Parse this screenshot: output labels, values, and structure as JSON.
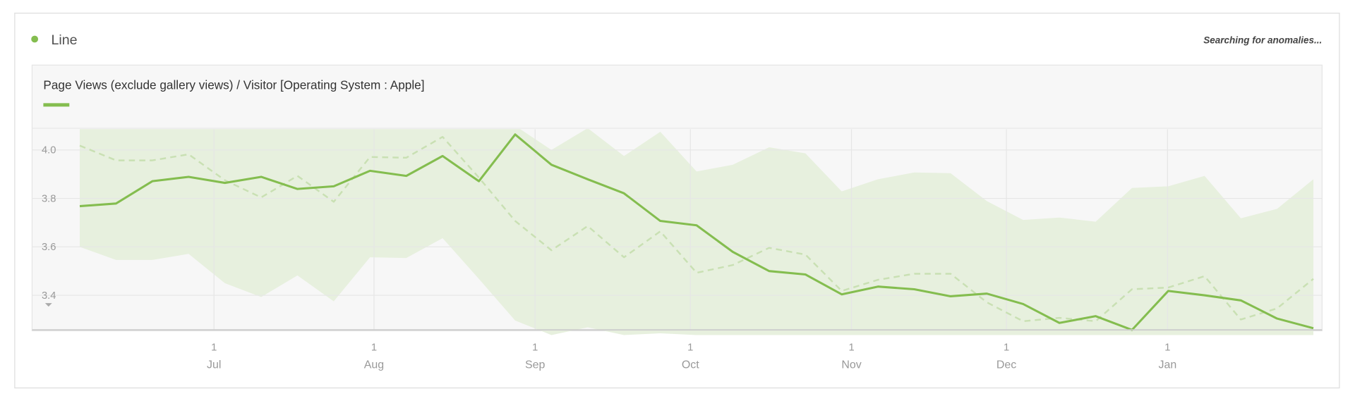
{
  "legend_label": "Line",
  "status": "Searching for anomalies...",
  "chart_data": {
    "type": "line",
    "title": "Page Views (exclude gallery views) / Visitor [Operating System : Apple]",
    "categories": [
      null,
      null,
      null,
      null,
      null,
      null,
      null,
      null,
      null,
      null,
      null,
      null,
      null,
      null,
      null,
      null,
      null,
      null,
      null,
      null,
      null,
      null,
      null,
      null,
      null,
      null,
      null,
      null,
      null,
      null,
      null,
      null,
      null,
      null,
      null
    ],
    "series": [
      {
        "color": "#84bd4f",
        "style": "solid",
        "values": [
          3.768,
          3.779,
          3.871,
          3.889,
          3.864,
          3.889,
          3.839,
          3.85,
          3.914,
          3.893,
          3.975,
          3.871,
          4.064,
          3.939,
          3.879,
          3.821,
          3.707,
          3.689,
          3.579,
          3.5,
          3.486,
          3.404,
          3.436,
          3.425,
          3.396,
          3.407,
          3.364,
          3.286,
          3.314,
          3.257,
          3.418,
          3.4,
          3.379,
          3.304,
          3.264
        ]
      },
      {
        "color": "#c9e0b3",
        "style": "dashed",
        "values": [
          4.018,
          3.957,
          3.957,
          3.982,
          3.875,
          3.804,
          3.893,
          3.786,
          3.971,
          3.968,
          4.054,
          3.886,
          3.707,
          3.586,
          3.686,
          3.557,
          3.664,
          3.493,
          3.525,
          3.596,
          3.568,
          3.418,
          3.464,
          3.489,
          3.489,
          3.371,
          3.293,
          3.307,
          3.293,
          3.425,
          3.432,
          3.479,
          3.3,
          3.346,
          3.468
        ]
      }
    ],
    "band": {
      "color": "#e7f0de",
      "upper": [
        4.1,
        4.1,
        4.1,
        4.1,
        4.1,
        4.1,
        4.1,
        4.1,
        4.1,
        4.1,
        4.1,
        4.1,
        4.1,
        4.0,
        4.09,
        3.975,
        4.075,
        3.911,
        3.939,
        4.011,
        3.986,
        3.829,
        3.879,
        3.907,
        3.904,
        3.789,
        3.711,
        3.721,
        3.704,
        3.843,
        3.85,
        3.893,
        3.718,
        3.757,
        3.879
      ],
      "lower": [
        3.6,
        3.546,
        3.546,
        3.571,
        3.45,
        3.393,
        3.482,
        3.375,
        3.557,
        3.554,
        3.636,
        3.468,
        3.296,
        3.236,
        3.268,
        3.236,
        3.243,
        3.236,
        3.236,
        3.236,
        3.236,
        3.236,
        3.236,
        3.236,
        3.236,
        3.236,
        3.236,
        3.236,
        3.236,
        3.236,
        3.236,
        3.236,
        3.236,
        3.236,
        3.236
      ]
    },
    "ylim": [
      3.257,
      4.086
    ],
    "yticks": [
      {
        "value": 4,
        "label": "4.0"
      },
      3.8,
      3.6,
      3.4
    ],
    "xticks": [
      {
        "value": 3.7,
        "day": "1",
        "label": "Jul"
      },
      {
        "value": 8.11,
        "day": "1",
        "label": "Aug"
      },
      {
        "value": 12.55,
        "day": "1",
        "label": "Sep"
      },
      {
        "value": 16.83,
        "day": "1",
        "label": "Oct"
      },
      {
        "value": 21.27,
        "day": "1",
        "label": "Nov"
      },
      {
        "value": 25.54,
        "day": "1",
        "label": "Dec"
      },
      {
        "value": 29.98,
        "day": "1",
        "label": "Jan"
      }
    ],
    "grid": true
  }
}
